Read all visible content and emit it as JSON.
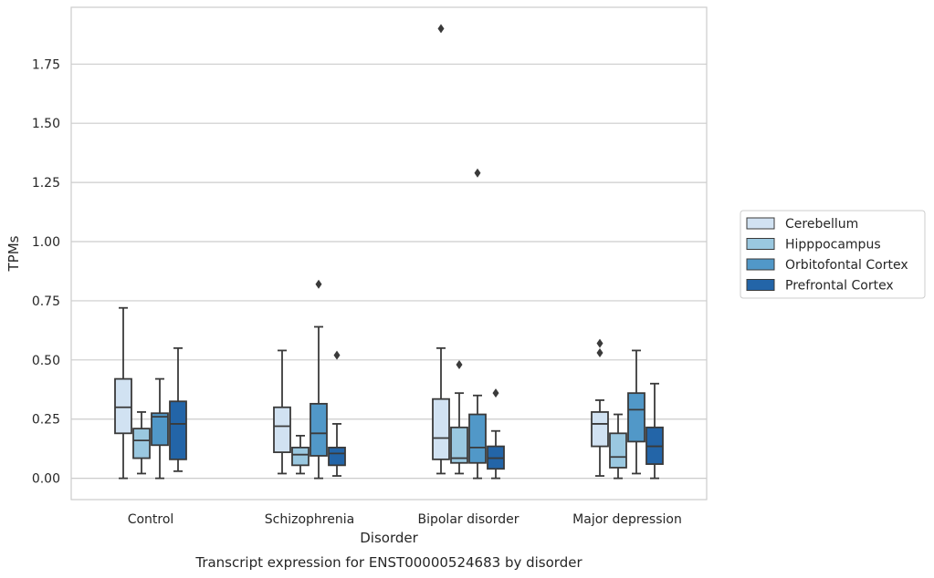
{
  "chart_data": {
    "type": "boxplot",
    "caption": "Transcript expression for ENST00000524683 by disorder",
    "xlabel": "Disorder",
    "ylabel": "TPMs",
    "ylim": [
      -0.09,
      1.99
    ],
    "yticks": [
      0.0,
      0.25,
      0.5,
      0.75,
      1.0,
      1.25,
      1.5,
      1.75
    ],
    "ytick_labels": [
      "0.00",
      "0.25",
      "0.50",
      "0.75",
      "1.00",
      "1.25",
      "1.50",
      "1.75"
    ],
    "categories": [
      "Control",
      "Schizophrenia",
      "Bipolar disorder",
      "Major depression"
    ],
    "grid": "horizontal",
    "legend_position": "right",
    "series": [
      {
        "name": "Cerebellum",
        "color": "#d1e2f2",
        "boxes": [
          {
            "whislo": 0.0,
            "q1": 0.19,
            "med": 0.3,
            "q3": 0.42,
            "whishi": 0.72,
            "fliers": []
          },
          {
            "whislo": 0.02,
            "q1": 0.11,
            "med": 0.22,
            "q3": 0.3,
            "whishi": 0.54,
            "fliers": []
          },
          {
            "whislo": 0.02,
            "q1": 0.08,
            "med": 0.17,
            "q3": 0.335,
            "whishi": 0.55,
            "fliers": [
              1.9
            ]
          },
          {
            "whislo": 0.01,
            "q1": 0.135,
            "med": 0.23,
            "q3": 0.28,
            "whishi": 0.33,
            "fliers": [
              0.53,
              0.57
            ]
          }
        ]
      },
      {
        "name": "Hipppocampus",
        "color": "#9ac8e0",
        "boxes": [
          {
            "whislo": 0.02,
            "q1": 0.085,
            "med": 0.16,
            "q3": 0.21,
            "whishi": 0.28,
            "fliers": []
          },
          {
            "whislo": 0.02,
            "q1": 0.055,
            "med": 0.1,
            "q3": 0.13,
            "whishi": 0.18,
            "fliers": []
          },
          {
            "whislo": 0.02,
            "q1": 0.065,
            "med": 0.085,
            "q3": 0.215,
            "whishi": 0.36,
            "fliers": [
              0.48
            ]
          },
          {
            "whislo": 0.0,
            "q1": 0.045,
            "med": 0.09,
            "q3": 0.19,
            "whishi": 0.27,
            "fliers": []
          }
        ]
      },
      {
        "name": "Orbitofontal Cortex",
        "color": "#5198c8",
        "boxes": [
          {
            "whislo": 0.0,
            "q1": 0.14,
            "med": 0.26,
            "q3": 0.275,
            "whishi": 0.42,
            "fliers": []
          },
          {
            "whislo": 0.0,
            "q1": 0.095,
            "med": 0.19,
            "q3": 0.315,
            "whishi": 0.64,
            "fliers": [
              0.82
            ]
          },
          {
            "whislo": 0.0,
            "q1": 0.065,
            "med": 0.13,
            "q3": 0.27,
            "whishi": 0.35,
            "fliers": [
              1.29
            ]
          },
          {
            "whislo": 0.02,
            "q1": 0.155,
            "med": 0.29,
            "q3": 0.36,
            "whishi": 0.54,
            "fliers": []
          }
        ]
      },
      {
        "name": "Prefrontal Cortex",
        "color": "#2365a8",
        "boxes": [
          {
            "whislo": 0.03,
            "q1": 0.08,
            "med": 0.23,
            "q3": 0.325,
            "whishi": 0.55,
            "fliers": []
          },
          {
            "whislo": 0.01,
            "q1": 0.055,
            "med": 0.105,
            "q3": 0.13,
            "whishi": 0.23,
            "fliers": [
              0.52
            ]
          },
          {
            "whislo": 0.0,
            "q1": 0.04,
            "med": 0.085,
            "q3": 0.135,
            "whishi": 0.2,
            "fliers": [
              0.36
            ]
          },
          {
            "whislo": 0.0,
            "q1": 0.06,
            "med": 0.135,
            "q3": 0.215,
            "whishi": 0.4,
            "fliers": []
          }
        ]
      }
    ]
  }
}
